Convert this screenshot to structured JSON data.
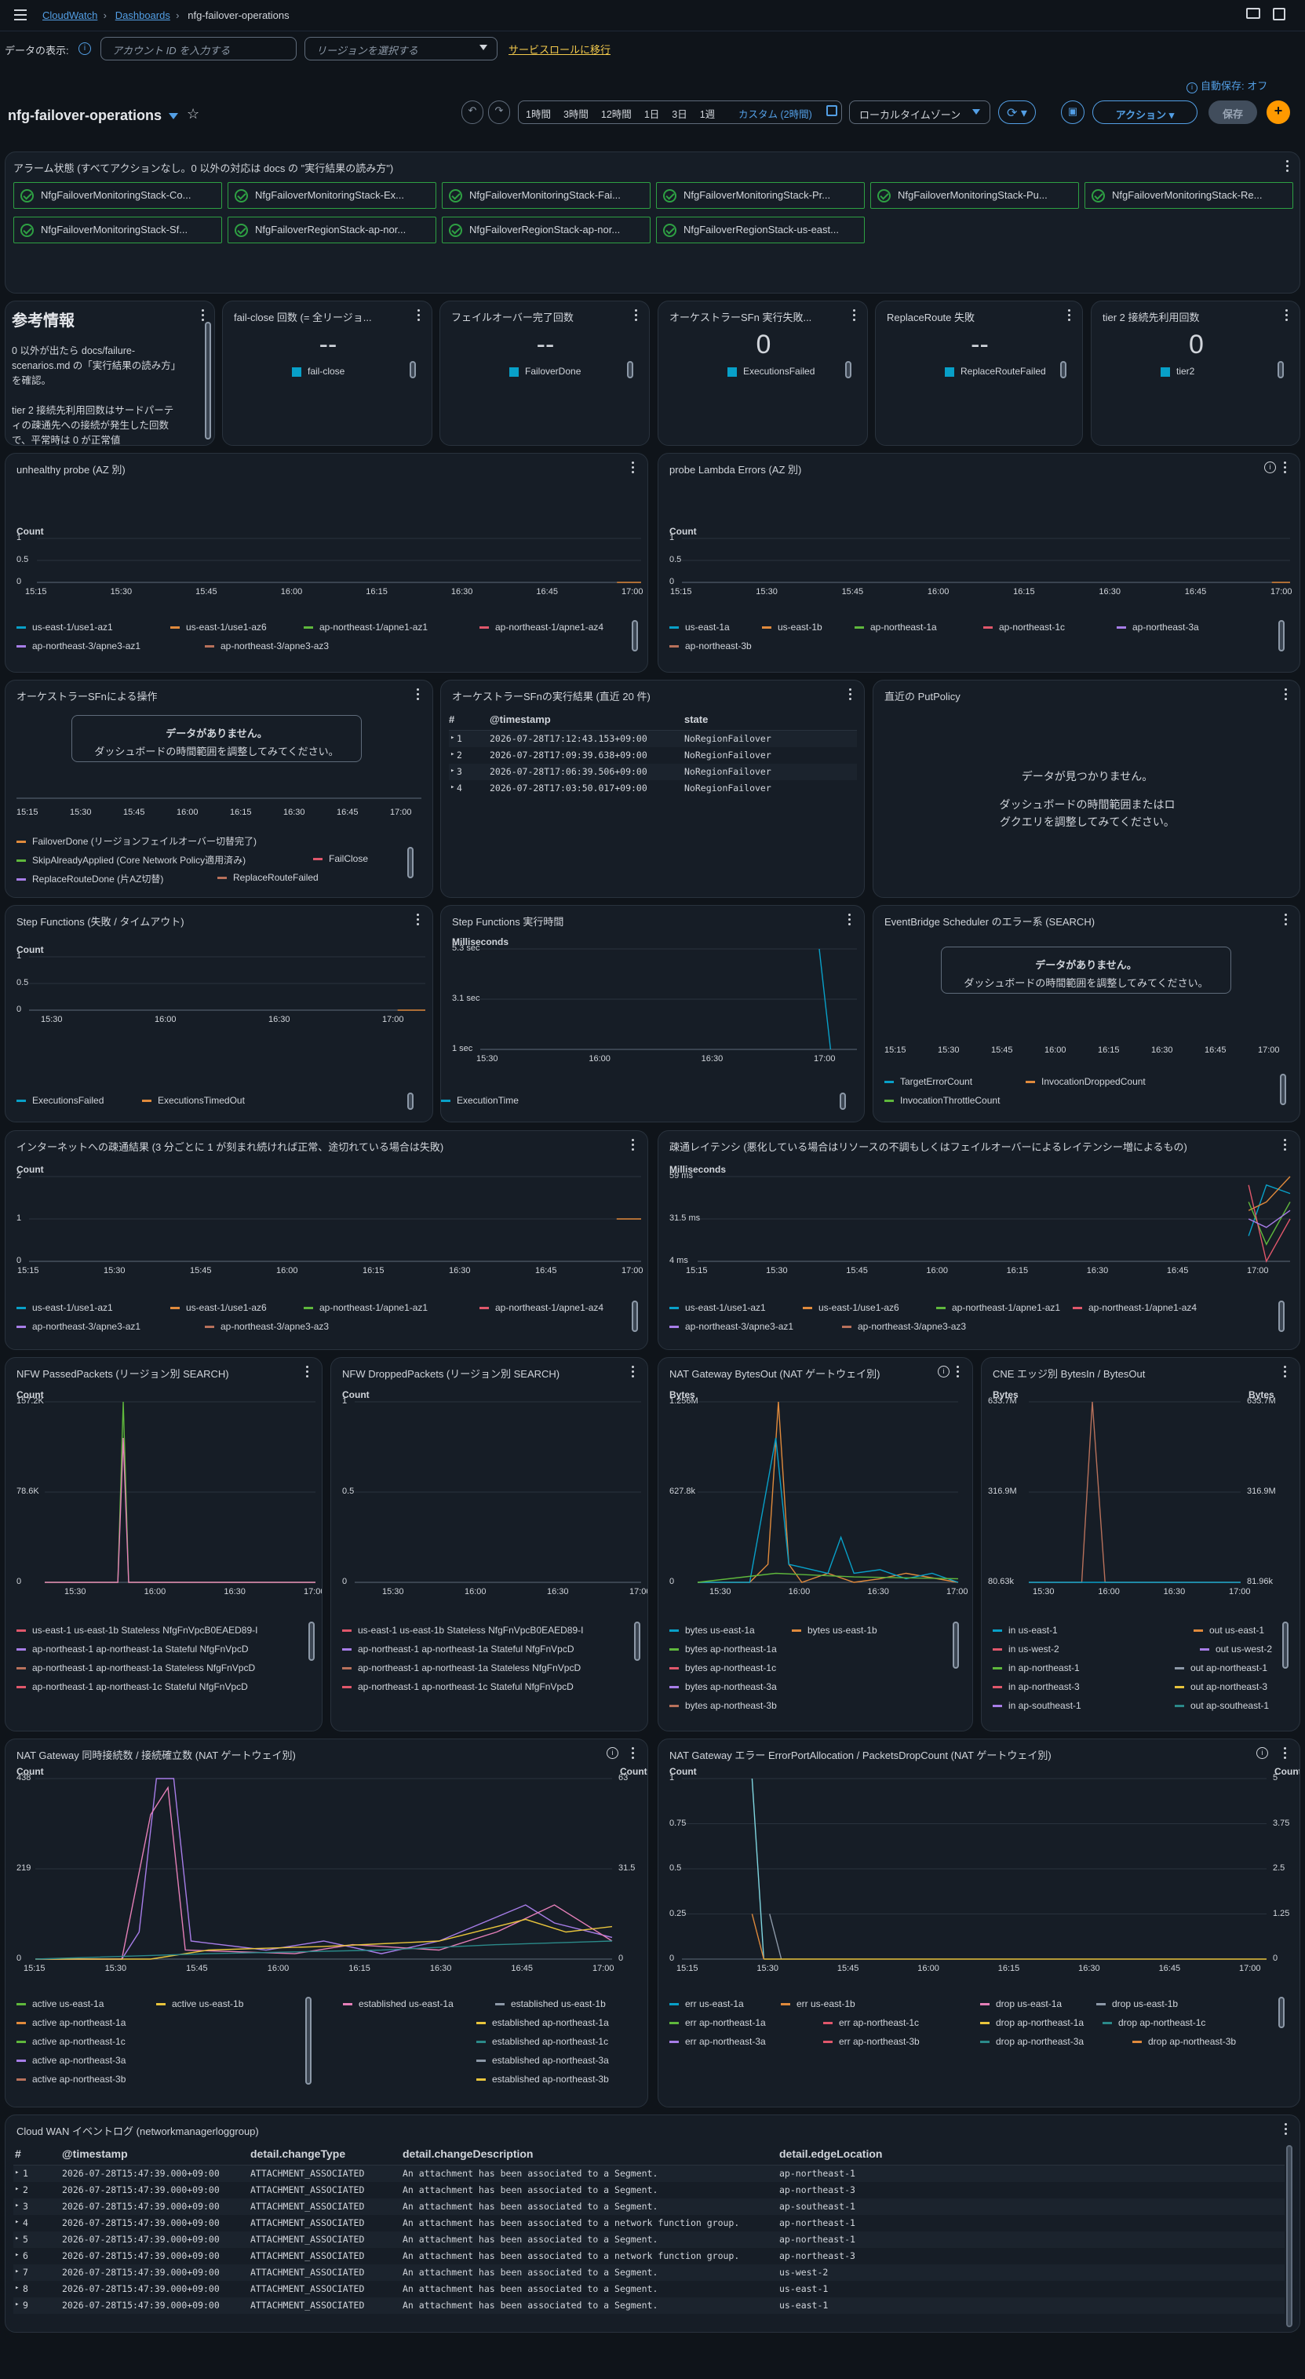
{
  "breadcrumb": {
    "home": "CloudWatch",
    "dashboards": "Dashboards",
    "current": "nfg-failover-operations"
  },
  "filters": {
    "data_display_label": "データの表示:",
    "account_placeholder": "アカウント ID を入力する",
    "region_placeholder": "リージョンを選択する",
    "service_role_link": "サービスロールに移行"
  },
  "autosave": "自動保存: オフ",
  "dashboard_title": "nfg-failover-operations",
  "time_ranges": [
    "1時間",
    "3時間",
    "12時間",
    "1日",
    "3日",
    "1週"
  ],
  "custom_range": "カスタム (2時間)",
  "timezone": "ローカルタイムゾーン",
  "actions_label": "アクション",
  "save_label": "保存",
  "alarm_panel": {
    "title": "アラーム状態 (すべてアクションなし。0 以外の対応は docs の \"実行結果の読み方\")",
    "alarms": [
      "NfgFailoverMonitoringStack-Co...",
      "NfgFailoverMonitoringStack-Ex...",
      "NfgFailoverMonitoringStack-Fai...",
      "NfgFailoverMonitoringStack-Pr...",
      "NfgFailoverMonitoringStack-Pu...",
      "NfgFailoverMonitoringStack-Re...",
      "NfgFailoverMonitoringStack-Sf...",
      "NfgFailoverRegionStack-ap-nor...",
      "NfgFailoverRegionStack-ap-nor...",
      "NfgFailoverRegionStack-us-east..."
    ]
  },
  "info_panel": {
    "title": "参考情報",
    "lines": [
      "0 以外が出たら docs/failure-",
      "scenarios.md の「実行結果の読み方」",
      "を確認。",
      "",
      "tier 2 接続先利用回数はサードパーテ",
      "ィの疎通先への接続が発生した回数",
      "で、平常時は 0 が正常値"
    ]
  },
  "stat_panels": [
    {
      "title": "fail-close 回数 (= 全リージョ...",
      "value": "--",
      "legend": "fail-close"
    },
    {
      "title": "フェイルオーバー完了回数",
      "value": "--",
      "legend": "FailoverDone"
    },
    {
      "title": "オーケストラーSFn 実行失敗...",
      "value": "0",
      "legend": "ExecutionsFailed"
    },
    {
      "title": "ReplaceRoute 失敗",
      "value": "--",
      "legend": "ReplaceRouteFailed"
    },
    {
      "title": "tier 2 接続先利用回数",
      "value": "0",
      "legend": "tier2"
    }
  ],
  "colors": {
    "blue": "#08a0c8",
    "orange": "#e08a3c",
    "green": "#5fb83c",
    "red": "#e0576b",
    "purple": "#a77de8",
    "brown": "#b8715b",
    "pink": "#e57fb8",
    "gray": "#8d99a8",
    "yellow": "#e8c43c",
    "teal": "#2b8a8a",
    "link": "#539fe5",
    "accent": "#ff9900"
  },
  "unhealthy": {
    "title": "unhealthy probe (AZ 別)",
    "unit": "Count",
    "yticks": [
      "1",
      "0.5",
      "0"
    ],
    "xticks": [
      "15:15",
      "15:30",
      "15:45",
      "16:00",
      "16:15",
      "16:30",
      "16:45",
      "17:00"
    ],
    "legend": [
      "us-east-1/use1-az1",
      "us-east-1/use1-az6",
      "ap-northeast-1/apne1-az1",
      "ap-northeast-1/apne1-az4",
      "ap-northeast-3/apne3-az1",
      "ap-northeast-3/apne3-az3"
    ]
  },
  "probe_errors": {
    "title": "probe Lambda Errors (AZ 別)",
    "unit": "Count",
    "yticks": [
      "1",
      "0.5",
      "0"
    ],
    "xticks": [
      "15:15",
      "15:30",
      "15:45",
      "16:00",
      "16:15",
      "16:30",
      "16:45",
      "17:00"
    ],
    "legend": [
      "us-east-1a",
      "us-east-1b",
      "ap-northeast-1a",
      "ap-northeast-1c",
      "ap-northeast-3a",
      "ap-northeast-3b"
    ]
  },
  "orch_ops": {
    "title": "オーケストラーSFnによる操作",
    "nodata_title": "データがありません。",
    "nodata_body": "ダッシュボードの時間範囲を調整してみてください。",
    "xticks": [
      "15:15",
      "15:30",
      "15:45",
      "16:00",
      "16:15",
      "16:30",
      "16:45",
      "17:00"
    ],
    "legend": [
      "FailoverDone (リージョンフェイルオーバー切替完了)",
      "SkipAlreadyApplied (Core Network Policy適用済み)",
      "FailClose",
      "ReplaceRouteDone (片AZ切替)",
      "ReplaceRouteFailed"
    ]
  },
  "orch_results": {
    "title": "オーケストラーSFnの実行結果 (直近 20 件)",
    "cols": [
      "#",
      "@timestamp",
      "state"
    ],
    "rows": [
      [
        "1",
        "2026-07-28T17:12:43.153+09:00",
        "NoRegionFailover"
      ],
      [
        "2",
        "2026-07-28T17:09:39.638+09:00",
        "NoRegionFailover"
      ],
      [
        "3",
        "2026-07-28T17:06:39.506+09:00",
        "NoRegionFailover"
      ],
      [
        "4",
        "2026-07-28T17:03:50.017+09:00",
        "NoRegionFailover"
      ]
    ]
  },
  "putpolicy": {
    "title": "直近の PutPolicy",
    "nodata_title": "データが見つかりません。",
    "nodata_body1": "ダッシュボードの時間範囲またはロ",
    "nodata_body2": "グクエリを調整してみてください。"
  },
  "sfn_fail": {
    "title": "Step Functions (失敗 / タイムアウト)",
    "unit": "Count",
    "yticks": [
      "1",
      "0.5",
      "0"
    ],
    "xticks": [
      "15:30",
      "16:00",
      "16:30",
      "17:00"
    ],
    "legend": [
      "ExecutionsFailed",
      "ExecutionsTimedOut"
    ]
  },
  "sfn_time": {
    "title": "Step Functions 実行時間",
    "unit": "Milliseconds",
    "yticks": [
      "5.3 sec",
      "3.1 sec",
      "1 sec"
    ],
    "xticks": [
      "15:30",
      "16:00",
      "16:30",
      "17:00"
    ],
    "legend": [
      "ExecutionTime"
    ]
  },
  "eb_sched": {
    "title": "EventBridge Scheduler のエラー系 (SEARCH)",
    "nodata_title": "データがありません。",
    "nodata_body": "ダッシュボードの時間範囲を調整してみてください。",
    "xticks": [
      "15:15",
      "15:30",
      "15:45",
      "16:00",
      "16:15",
      "16:30",
      "16:45",
      "17:00"
    ],
    "legend": [
      "TargetErrorCount",
      "InvocationDroppedCount",
      "InvocationThrottleCount"
    ]
  },
  "internet": {
    "title": "インターネットへの疎通結果 (3 分ごとに 1 が刻まれ続ければ正常、途切れている場合は失敗)",
    "unit": "Count",
    "yticks": [
      "2",
      "1",
      "0"
    ],
    "xticks": [
      "15:15",
      "15:30",
      "15:45",
      "16:00",
      "16:15",
      "16:30",
      "16:45",
      "17:00"
    ],
    "legend": [
      "us-east-1/use1-az1",
      "us-east-1/use1-az6",
      "ap-northeast-1/apne1-az1",
      "ap-northeast-1/apne1-az4",
      "ap-northeast-3/apne3-az1",
      "ap-northeast-3/apne3-az3"
    ]
  },
  "latency": {
    "title": "疎通レイテンシ (悪化している場合はリソースの不調もしくはフェイルオーバーによるレイテンシー増によるもの)",
    "unit": "Milliseconds",
    "yticks": [
      "59 ms",
      "31.5 ms",
      "4 ms"
    ],
    "xticks": [
      "15:15",
      "15:30",
      "15:45",
      "16:00",
      "16:15",
      "16:30",
      "16:45",
      "17:00"
    ],
    "legend": [
      "us-east-1/use1-az1",
      "us-east-1/use1-az6",
      "ap-northeast-1/apne1-az1",
      "ap-northeast-1/apne1-az4",
      "ap-northeast-3/apne3-az1",
      "ap-northeast-3/apne3-az3"
    ]
  },
  "nfw_pass": {
    "title": "NFW PassedPackets (リージョン別 SEARCH)",
    "unit": "Count",
    "yticks": [
      "157.2K",
      "78.6K",
      "0"
    ],
    "xticks": [
      "15:30",
      "16:00",
      "16:30",
      "17:00"
    ],
    "legend": [
      "us-east-1 us-east-1b Stateless NfgFnVpcB0EAED89-I",
      "ap-northeast-1 ap-northeast-1a Stateful NfgFnVpcD",
      "ap-northeast-1 ap-northeast-1a Stateless NfgFnVpcD",
      "ap-northeast-1 ap-northeast-1c Stateful NfgFnVpcD"
    ]
  },
  "nfw_drop": {
    "title": "NFW DroppedPackets (リージョン別 SEARCH)",
    "unit": "Count",
    "yticks": [
      "1",
      "0.5",
      "0"
    ],
    "xticks": [
      "15:30",
      "16:00",
      "16:30",
      "17:00"
    ],
    "legend": [
      "us-east-1 us-east-1b Stateless NfgFnVpcB0EAED89-I",
      "ap-northeast-1 ap-northeast-1a Stateful NfgFnVpcD",
      "ap-northeast-1 ap-northeast-1a Stateless NfgFnVpcD",
      "ap-northeast-1 ap-northeast-1c Stateful NfgFnVpcD"
    ]
  },
  "nat_bytes": {
    "title": "NAT Gateway BytesOut (NAT ゲートウェイ別)",
    "unit": "Bytes",
    "yticks": [
      "1.256M",
      "627.8k",
      "0"
    ],
    "xticks": [
      "15:30",
      "16:00",
      "16:30",
      "17:00"
    ],
    "legend": [
      "bytes us-east-1a",
      "bytes us-east-1b",
      "bytes ap-northeast-1a",
      "bytes ap-northeast-1c",
      "bytes ap-northeast-3a",
      "bytes ap-northeast-3b"
    ]
  },
  "cne": {
    "title": "CNE エッジ別 BytesIn / BytesOut",
    "unit": "Bytes",
    "unit_right": "Bytes",
    "yticks": [
      "633.7M",
      "316.9M",
      "80.63k"
    ],
    "yticks_right": [
      "633.7M",
      "316.9M",
      "81.96k"
    ],
    "xticks": [
      "15:30",
      "16:00",
      "16:30",
      "17:00"
    ],
    "legend": [
      "in us-east-1",
      "out us-east-1",
      "in us-west-2",
      "out us-west-2",
      "in ap-northeast-1",
      "out ap-northeast-1",
      "in ap-northeast-3",
      "out ap-northeast-3",
      "in ap-southeast-1",
      "out ap-southeast-1"
    ]
  },
  "nat_conn": {
    "title": "NAT Gateway 同時接続数 / 接続確立数 (NAT ゲートウェイ別)",
    "unit": "Count",
    "unit_right": "Count",
    "yticks": [
      "438",
      "219",
      "0"
    ],
    "yticks_right": [
      "63",
      "31.5",
      "0"
    ],
    "xticks": [
      "15:15",
      "15:30",
      "15:45",
      "16:00",
      "16:15",
      "16:30",
      "16:45",
      "17:00"
    ],
    "legend": [
      "active us-east-1a",
      "active us-east-1b",
      "established us-east-1a",
      "established us-east-1b",
      "active ap-northeast-1a",
      "established ap-northeast-1a",
      "active ap-northeast-1c",
      "established ap-northeast-1c",
      "active ap-northeast-3a",
      "established ap-northeast-3a",
      "active ap-northeast-3b",
      "established ap-northeast-3b"
    ]
  },
  "nat_err": {
    "title": "NAT Gateway エラー ErrorPortAllocation / PacketsDropCount (NAT ゲートウェイ別)",
    "unit": "Count",
    "unit_right": "Count",
    "yticks": [
      "1",
      "0.75",
      "0.5",
      "0.25",
      "0"
    ],
    "yticks_right": [
      "5",
      "3.75",
      "2.5",
      "1.25",
      "0"
    ],
    "xticks": [
      "15:15",
      "15:30",
      "15:45",
      "16:00",
      "16:15",
      "16:30",
      "16:45",
      "17:00"
    ],
    "legend": [
      "err us-east-1a",
      "err us-east-1b",
      "drop us-east-1a",
      "drop us-east-1b",
      "err ap-northeast-1a",
      "err ap-northeast-1c",
      "drop ap-northeast-1a",
      "drop ap-northeast-1c",
      "err ap-northeast-3a",
      "err ap-northeast-3b",
      "drop ap-northeast-3a",
      "drop ap-northeast-3b"
    ]
  },
  "cloudwan": {
    "title": "Cloud WAN イベントログ (networkmanagerloggroup)",
    "cols": [
      "#",
      "@timestamp",
      "detail.changeType",
      "detail.changeDescription",
      "detail.edgeLocation"
    ],
    "rows": [
      [
        "1",
        "2026-07-28T15:47:39.000+09:00",
        "ATTACHMENT_ASSOCIATED",
        "An attachment has been associated to a Segment.",
        "ap-northeast-1"
      ],
      [
        "2",
        "2026-07-28T15:47:39.000+09:00",
        "ATTACHMENT_ASSOCIATED",
        "An attachment has been associated to a Segment.",
        "ap-northeast-3"
      ],
      [
        "3",
        "2026-07-28T15:47:39.000+09:00",
        "ATTACHMENT_ASSOCIATED",
        "An attachment has been associated to a Segment.",
        "ap-southeast-1"
      ],
      [
        "4",
        "2026-07-28T15:47:39.000+09:00",
        "ATTACHMENT_ASSOCIATED",
        "An attachment has been associated to a network function group.",
        "ap-northeast-1"
      ],
      [
        "5",
        "2026-07-28T15:47:39.000+09:00",
        "ATTACHMENT_ASSOCIATED",
        "An attachment has been associated to a Segment.",
        "ap-northeast-1"
      ],
      [
        "6",
        "2026-07-28T15:47:39.000+09:00",
        "ATTACHMENT_ASSOCIATED",
        "An attachment has been associated to a network function group.",
        "ap-northeast-3"
      ],
      [
        "7",
        "2026-07-28T15:47:39.000+09:00",
        "ATTACHMENT_ASSOCIATED",
        "An attachment has been associated to a Segment.",
        "us-west-2"
      ],
      [
        "8",
        "2026-07-28T15:47:39.000+09:00",
        "ATTACHMENT_ASSOCIATED",
        "An attachment has been associated to a Segment.",
        "us-east-1"
      ],
      [
        "9",
        "2026-07-28T15:47:39.000+09:00",
        "ATTACHMENT_ASSOCIATED",
        "An attachment has been associated to a Segment.",
        "us-east-1"
      ]
    ]
  }
}
